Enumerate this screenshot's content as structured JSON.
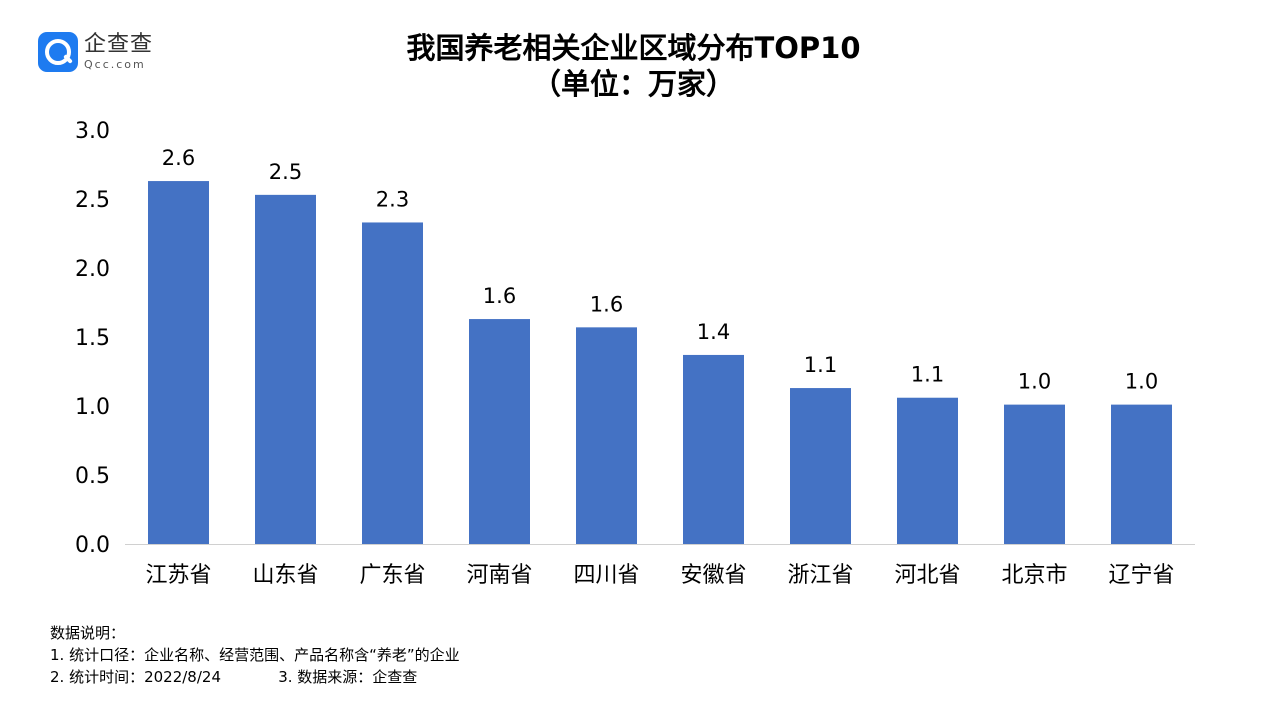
{
  "logo": {
    "cn": "企查查",
    "en": "Qcc.com"
  },
  "chart_data": {
    "type": "bar",
    "title": "我国养老相关企业区域分布TOP10",
    "subtitle": "（单位：万家）",
    "categories": [
      "江苏省",
      "山东省",
      "广东省",
      "河南省",
      "四川省",
      "安徽省",
      "浙江省",
      "河北省",
      "北京市",
      "辽宁省"
    ],
    "values": [
      2.6,
      2.5,
      2.3,
      1.6,
      1.6,
      1.4,
      1.1,
      1.1,
      1.0,
      1.0
    ],
    "bar_heights_estimate": [
      2.63,
      2.53,
      2.33,
      1.63,
      1.57,
      1.37,
      1.13,
      1.06,
      1.01,
      1.01
    ],
    "data_labels": [
      "2.6",
      "2.5",
      "2.3",
      "1.6",
      "1.6",
      "1.4",
      "1.1",
      "1.1",
      "1.0",
      "1.0"
    ],
    "y_ticks": [
      "0.0",
      "0.5",
      "1.0",
      "1.5",
      "2.0",
      "2.5",
      "3.0"
    ],
    "ylim": [
      0,
      3.0
    ],
    "grid": false,
    "bar_color": "#4472c4"
  },
  "notes": {
    "heading": "数据说明：",
    "line1": "1. 统计口径：企业名称、经营范围、产品名称含“养老”的企业",
    "line2a": "2. 统计时间：2022/8/24",
    "line2b": "3. 数据来源：企查查"
  }
}
